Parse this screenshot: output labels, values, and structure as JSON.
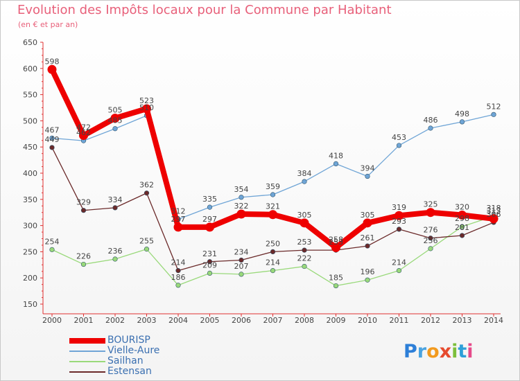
{
  "title": "Evolution des Impôts locaux pour la Commune par Habitant",
  "subtitle": "(en € et par an)",
  "logo": "Proxiti",
  "chart_data": {
    "type": "line",
    "title": "Evolution des Impôts locaux pour la Commune par Habitant",
    "subtitle": "(en € et par an)",
    "categories": [
      "2000",
      "2001",
      "2002",
      "2003",
      "2004",
      "2005",
      "2006",
      "2007",
      "2008",
      "2009",
      "2010",
      "2011",
      "2012",
      "2013",
      "2014"
    ],
    "ylim": [
      150,
      650
    ],
    "yticks": [
      150,
      200,
      250,
      300,
      350,
      400,
      450,
      500,
      550,
      600,
      650
    ],
    "grid": false,
    "legend": "bottom-left",
    "series": [
      {
        "name": "BOURISP",
        "color": "#ee0000",
        "values": [
          598,
          472,
          505,
          523,
          297,
          297,
          322,
          321,
          305,
          258,
          305,
          319,
          325,
          320,
          313
        ]
      },
      {
        "name": "Vielle-Aure",
        "color": "#6fa5d6",
        "values": [
          467,
          462,
          485,
          510,
          312,
          335,
          354,
          359,
          384,
          418,
          394,
          453,
          486,
          498,
          512
        ]
      },
      {
        "name": "Sailhan",
        "color": "#99d97a",
        "values": [
          254,
          226,
          236,
          255,
          186,
          209,
          207,
          214,
          222,
          185,
          196,
          214,
          256,
          298,
          318
        ]
      },
      {
        "name": "Estensan",
        "color": "#6b2a2a",
        "values": [
          449,
          329,
          334,
          362,
          214,
          231,
          234,
          250,
          253,
          253,
          261,
          293,
          276,
          281,
          306
        ]
      }
    ]
  }
}
